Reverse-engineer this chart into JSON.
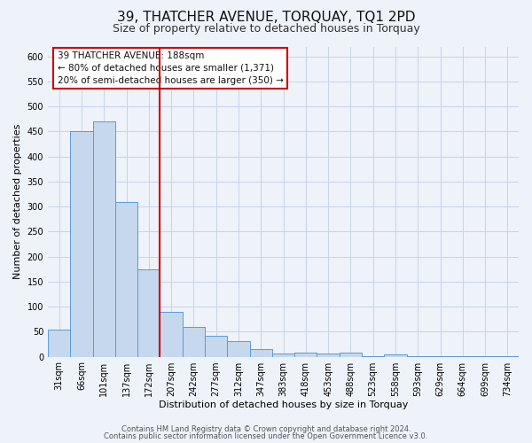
{
  "title": "39, THATCHER AVENUE, TORQUAY, TQ1 2PD",
  "subtitle": "Size of property relative to detached houses in Torquay",
  "xlabel": "Distribution of detached houses by size in Torquay",
  "ylabel": "Number of detached properties",
  "categories": [
    "31sqm",
    "66sqm",
    "101sqm",
    "137sqm",
    "172sqm",
    "207sqm",
    "242sqm",
    "277sqm",
    "312sqm",
    "347sqm",
    "383sqm",
    "418sqm",
    "453sqm",
    "488sqm",
    "523sqm",
    "558sqm",
    "593sqm",
    "629sqm",
    "664sqm",
    "699sqm",
    "734sqm"
  ],
  "values": [
    55,
    450,
    470,
    310,
    175,
    90,
    60,
    42,
    32,
    15,
    7,
    8,
    6,
    8,
    1,
    4,
    1,
    1,
    1,
    1,
    1
  ],
  "bar_color": "#c5d8ed",
  "bar_edge_color": "#5b9bd5",
  "red_line_index": 5,
  "red_line_color": "#cc0000",
  "annotation_line1": "39 THATCHER AVENUE: 188sqm",
  "annotation_line2": "← 80% of detached houses are smaller (1,371)",
  "annotation_line3": "20% of semi-detached houses are larger (350) →",
  "annotation_box_color": "#ffffff",
  "annotation_box_edge_color": "#cc0000",
  "ylim": [
    0,
    620
  ],
  "yticks": [
    0,
    50,
    100,
    150,
    200,
    250,
    300,
    350,
    400,
    450,
    500,
    550,
    600
  ],
  "footer_line1": "Contains HM Land Registry data © Crown copyright and database right 2024.",
  "footer_line2": "Contains public sector information licensed under the Open Government Licence v3.0.",
  "background_color": "#eef2f9",
  "grid_color": "#c8d4e8",
  "title_fontsize": 11,
  "subtitle_fontsize": 9,
  "axis_label_fontsize": 8,
  "tick_fontsize": 7,
  "annotation_fontsize": 7.5,
  "footer_fontsize": 6
}
